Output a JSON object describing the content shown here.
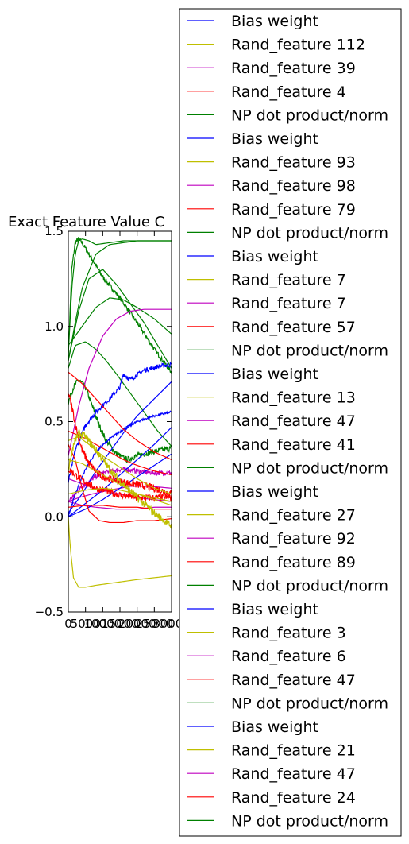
{
  "chart_data": {
    "type": "line",
    "title": "Exact Feature Value C",
    "xlabel": "",
    "ylabel": "",
    "xlim": [
      0,
      30000
    ],
    "ylim": [
      -0.5,
      1.5
    ],
    "xticks": [
      "0",
      "5000",
      "10000",
      "15000",
      "20000",
      "25000",
      "30000"
    ],
    "yticks": [
      "−0.5",
      "0.0",
      "0.5",
      "1.0",
      "1.5"
    ],
    "grid": false,
    "legend_position": "right",
    "colors": {
      "blue": "#0000ff",
      "yellow": "#bfbf00",
      "magenta": "#bf00bf",
      "red": "#ff0000",
      "green": "#008000"
    },
    "legend": [
      {
        "label": "Bias weight",
        "color": "#0000ff"
      },
      {
        "label": "Rand_feature 112",
        "color": "#bfbf00"
      },
      {
        "label": "Rand_feature 39",
        "color": "#bf00bf"
      },
      {
        "label": "Rand_feature 4",
        "color": "#ff0000"
      },
      {
        "label": "NP dot product/norm",
        "color": "#008000"
      },
      {
        "label": "Bias weight",
        "color": "#0000ff"
      },
      {
        "label": "Rand_feature 93",
        "color": "#bfbf00"
      },
      {
        "label": "Rand_feature 98",
        "color": "#bf00bf"
      },
      {
        "label": "Rand_feature 79",
        "color": "#ff0000"
      },
      {
        "label": "NP dot product/norm",
        "color": "#008000"
      },
      {
        "label": "Bias weight",
        "color": "#0000ff"
      },
      {
        "label": "Rand_feature 7",
        "color": "#bfbf00"
      },
      {
        "label": "Rand_feature 7",
        "color": "#bf00bf"
      },
      {
        "label": "Rand_feature 57",
        "color": "#ff0000"
      },
      {
        "label": "NP dot product/norm",
        "color": "#008000"
      },
      {
        "label": "Bias weight",
        "color": "#0000ff"
      },
      {
        "label": "Rand_feature 13",
        "color": "#bfbf00"
      },
      {
        "label": "Rand_feature 47",
        "color": "#bf00bf"
      },
      {
        "label": "Rand_feature 41",
        "color": "#ff0000"
      },
      {
        "label": "NP dot product/norm",
        "color": "#008000"
      },
      {
        "label": "Bias weight",
        "color": "#0000ff"
      },
      {
        "label": "Rand_feature 27",
        "color": "#bfbf00"
      },
      {
        "label": "Rand_feature 92",
        "color": "#bf00bf"
      },
      {
        "label": "Rand_feature 89",
        "color": "#ff0000"
      },
      {
        "label": "NP dot product/norm",
        "color": "#008000"
      },
      {
        "label": "Bias weight",
        "color": "#0000ff"
      },
      {
        "label": "Rand_feature 3",
        "color": "#bfbf00"
      },
      {
        "label": "Rand_feature 6",
        "color": "#bf00bf"
      },
      {
        "label": "Rand_feature 47",
        "color": "#ff0000"
      },
      {
        "label": "NP dot product/norm",
        "color": "#008000"
      },
      {
        "label": "Bias weight",
        "color": "#0000ff"
      },
      {
        "label": "Rand_feature 21",
        "color": "#bfbf00"
      },
      {
        "label": "Rand_feature 47",
        "color": "#bf00bf"
      },
      {
        "label": "Rand_feature 24",
        "color": "#ff0000"
      },
      {
        "label": "NP dot product/norm",
        "color": "#008000"
      }
    ],
    "series": [
      {
        "color": "#008000",
        "noise": 0,
        "x": [
          0,
          1000,
          2000,
          3000,
          4000,
          6000,
          8000,
          12000,
          16000,
          20000,
          25000,
          30000
        ],
        "y": [
          0.85,
          1.2,
          1.38,
          1.45,
          1.46,
          1.45,
          1.43,
          1.44,
          1.45,
          1.45,
          1.45,
          1.45
        ]
      },
      {
        "color": "#008000",
        "noise": 0,
        "x": [
          0,
          2000,
          4000,
          8000,
          12000,
          16000,
          20000,
          25000,
          30000
        ],
        "y": [
          0.82,
          1.02,
          1.2,
          1.38,
          1.43,
          1.44,
          1.45,
          1.45,
          1.45
        ]
      },
      {
        "color": "#008000",
        "noise": 0.012,
        "x": [
          0,
          1000,
          2000,
          3000,
          4000,
          6000,
          10000,
          15000,
          20000,
          25000,
          30000
        ],
        "y": [
          0.85,
          1.3,
          1.44,
          1.46,
          1.44,
          1.38,
          1.26,
          1.15,
          1.02,
          0.88,
          0.76
        ]
      },
      {
        "color": "#008000",
        "noise": 0,
        "x": [
          0,
          3000,
          6000,
          10000,
          14000,
          18000,
          22000,
          26000,
          30000
        ],
        "y": [
          0.82,
          1.08,
          1.25,
          1.3,
          1.22,
          1.12,
          1.02,
          0.9,
          0.78
        ]
      },
      {
        "color": "#008000",
        "noise": 0,
        "x": [
          0,
          4000,
          8000,
          12000,
          16000,
          20000,
          25000,
          30000
        ],
        "y": [
          0.9,
          1.0,
          1.1,
          1.15,
          1.14,
          1.1,
          1.04,
          0.96
        ]
      },
      {
        "color": "#008000",
        "noise": 0,
        "x": [
          0,
          2000,
          5000,
          8000,
          11000,
          14000,
          18000,
          22000,
          26000,
          30000
        ],
        "y": [
          0.78,
          0.9,
          0.92,
          0.88,
          0.82,
          0.75,
          0.65,
          0.55,
          0.45,
          0.37
        ]
      },
      {
        "color": "#008000",
        "noise": 0.015,
        "x": [
          0,
          1500,
          3000,
          5000,
          7000,
          9000,
          11000,
          14000,
          17000,
          20000,
          24000,
          30000
        ],
        "y": [
          0.6,
          0.68,
          0.72,
          0.68,
          0.58,
          0.48,
          0.4,
          0.33,
          0.3,
          0.32,
          0.34,
          0.36
        ]
      },
      {
        "color": "#bf00bf",
        "noise": 0,
        "x": [
          0,
          3000,
          6000,
          10000,
          14000,
          18000,
          22000,
          26000,
          30000
        ],
        "y": [
          0.32,
          0.58,
          0.78,
          0.95,
          1.04,
          1.08,
          1.09,
          1.09,
          1.09
        ]
      },
      {
        "color": "#bf00bf",
        "noise": 0.012,
        "x": [
          0,
          2000,
          4000,
          7000,
          10000,
          13000,
          16000,
          20000,
          25000,
          30000
        ],
        "y": [
          0.08,
          0.12,
          0.16,
          0.2,
          0.23,
          0.24,
          0.25,
          0.24,
          0.23,
          0.23
        ]
      },
      {
        "color": "#bf00bf",
        "noise": 0,
        "x": [
          0,
          3000,
          6000,
          10000,
          15000,
          20000,
          25000,
          30000
        ],
        "y": [
          0.2,
          0.18,
          0.16,
          0.14,
          0.12,
          0.1,
          0.09,
          0.08
        ]
      },
      {
        "color": "#bf00bf",
        "noise": 0,
        "x": [
          0,
          3000,
          7000,
          12000,
          18000,
          24000,
          30000
        ],
        "y": [
          0.08,
          0.1,
          0.12,
          0.14,
          0.16,
          0.16,
          0.15
        ]
      },
      {
        "color": "#bf00bf",
        "noise": 0,
        "x": [
          0,
          4000,
          8000,
          14000,
          20000,
          25000,
          30000
        ],
        "y": [
          0.08,
          0.06,
          0.05,
          0.04,
          0.04,
          0.05,
          0.05
        ]
      },
      {
        "color": "#0000ff",
        "noise": 0.012,
        "x": [
          0,
          2000,
          5000,
          8000,
          12000,
          15000,
          16000,
          18000,
          22000,
          26000,
          30000
        ],
        "y": [
          0.18,
          0.35,
          0.48,
          0.55,
          0.62,
          0.68,
          0.75,
          0.72,
          0.77,
          0.79,
          0.8
        ]
      },
      {
        "color": "#0000ff",
        "noise": 0.006,
        "x": [
          0,
          2000,
          5000,
          8000,
          12000,
          16000,
          20000,
          25000,
          30000
        ],
        "y": [
          0.0,
          0.12,
          0.25,
          0.34,
          0.41,
          0.46,
          0.5,
          0.53,
          0.55
        ]
      },
      {
        "color": "#0000ff",
        "noise": 0,
        "x": [
          0,
          4000,
          8000,
          12000,
          16000,
          20000,
          25000,
          30000
        ],
        "y": [
          0.02,
          0.12,
          0.24,
          0.34,
          0.44,
          0.53,
          0.62,
          0.71
        ]
      },
      {
        "color": "#0000ff",
        "noise": 0,
        "x": [
          0,
          5000,
          10000,
          15000,
          20000,
          25000,
          30000
        ],
        "y": [
          0.0,
          0.07,
          0.14,
          0.22,
          0.3,
          0.38,
          0.47
        ]
      },
      {
        "color": "#0000ff",
        "noise": 0,
        "x": [
          0,
          5000,
          10000,
          15000,
          20000,
          25000,
          30000
        ],
        "y": [
          0.0,
          0.04,
          0.09,
          0.15,
          0.21,
          0.27,
          0.33
        ]
      },
      {
        "color": "#ff0000",
        "noise": 0.02,
        "x": [
          0,
          1000,
          2500,
          4000,
          6000,
          9000,
          12000,
          16000,
          20000,
          25000,
          30000
        ],
        "y": [
          0.65,
          0.58,
          0.45,
          0.35,
          0.28,
          0.22,
          0.2,
          0.18,
          0.17,
          0.15,
          0.12
        ]
      },
      {
        "color": "#ff0000",
        "noise": 0,
        "x": [
          0,
          4000,
          8000,
          12000,
          16000,
          20000,
          25000,
          30000
        ],
        "y": [
          0.76,
          0.7,
          0.62,
          0.54,
          0.46,
          0.4,
          0.34,
          0.3
        ]
      },
      {
        "color": "#ff0000",
        "noise": 0.018,
        "x": [
          0,
          2000,
          5000,
          8000,
          12000,
          16000,
          20000,
          25000,
          30000
        ],
        "y": [
          0.25,
          0.22,
          0.18,
          0.15,
          0.13,
          0.11,
          0.1,
          0.1,
          0.1
        ]
      },
      {
        "color": "#ff0000",
        "noise": 0,
        "x": [
          0,
          2000,
          4000,
          6000,
          9000,
          12000,
          16000,
          20000,
          25000,
          30000
        ],
        "y": [
          0.38,
          0.3,
          0.15,
          0.03,
          -0.02,
          -0.03,
          -0.03,
          -0.02,
          -0.02,
          -0.01
        ]
      },
      {
        "color": "#ff0000",
        "noise": 0,
        "x": [
          0,
          5000,
          10000,
          15000,
          20000,
          25000,
          30000
        ],
        "y": [
          0.05,
          0.06,
          0.06,
          0.05,
          0.05,
          0.04,
          0.04
        ]
      },
      {
        "color": "#ff0000",
        "noise": 0,
        "x": [
          0,
          4000,
          8000,
          12000,
          16000,
          20000,
          25000,
          30000
        ],
        "y": [
          0.45,
          0.42,
          0.38,
          0.34,
          0.3,
          0.27,
          0.24,
          0.22
        ]
      },
      {
        "color": "#bfbf00",
        "noise": 0,
        "x": [
          0,
          500,
          1500,
          3000,
          5000,
          8000,
          12000,
          16000,
          20000,
          25000,
          30000
        ],
        "y": [
          0.0,
          -0.15,
          -0.32,
          -0.37,
          -0.37,
          -0.36,
          -0.35,
          -0.34,
          -0.33,
          -0.32,
          -0.31
        ]
      },
      {
        "color": "#bfbf00",
        "noise": 0.02,
        "x": [
          0,
          1500,
          3000,
          5000,
          8000,
          12000,
          16000,
          20000,
          25000,
          30000
        ],
        "y": [
          0.25,
          0.38,
          0.44,
          0.42,
          0.35,
          0.25,
          0.17,
          0.1,
          0.02,
          -0.05
        ]
      },
      {
        "color": "#bfbf00",
        "noise": 0,
        "x": [
          0,
          3000,
          6000,
          10000,
          15000,
          20000,
          25000,
          30000
        ],
        "y": [
          0.4,
          0.42,
          0.38,
          0.32,
          0.26,
          0.2,
          0.15,
          0.12
        ]
      },
      {
        "color": "#bfbf00",
        "noise": 0,
        "x": [
          0,
          4000,
          8000,
          12000,
          16000,
          20000,
          25000,
          30000
        ],
        "y": [
          0.3,
          0.28,
          0.24,
          0.2,
          0.16,
          0.12,
          0.09,
          0.06
        ]
      },
      {
        "color": "#bfbf00",
        "noise": 0,
        "x": [
          0,
          5000,
          10000,
          15000,
          20000,
          25000,
          30000
        ],
        "y": [
          0.12,
          0.14,
          0.15,
          0.14,
          0.12,
          0.1,
          0.08
        ]
      }
    ]
  }
}
